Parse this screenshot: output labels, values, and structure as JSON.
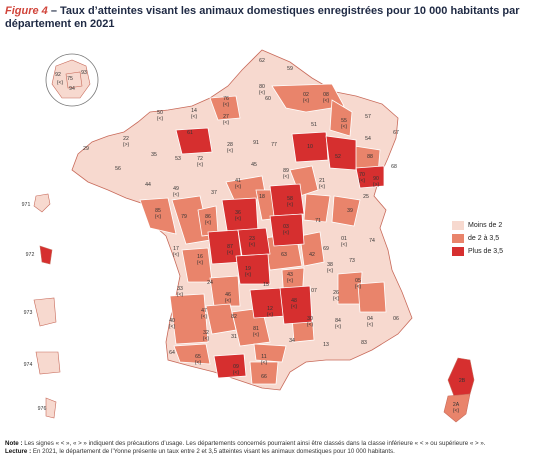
{
  "title": {
    "figure_label": "Figure 4",
    "separator": " – ",
    "text": "Taux d’atteintes visant les animaux domestiques enregistrées pour 10 000 habitants par département en 2021"
  },
  "legend": {
    "items": [
      {
        "label": "Moins de 2",
        "color": "#f7d9cf"
      },
      {
        "label": "de 2 à 3,5",
        "color": "#e9846b"
      },
      {
        "label": "Plus de 3,5",
        "color": "#d62f2f"
      }
    ]
  },
  "colors": {
    "low": "#f7d9cf",
    "mid": "#e9846b",
    "high": "#d62f2f",
    "border": "#ffffff",
    "outline": "#c86a5a",
    "idf_outline": "#777777"
  },
  "map_labels": [
    {
      "id": "62",
      "cls": "low"
    },
    {
      "id": "59",
      "cls": "low"
    },
    {
      "id": "80",
      "cls": "mid"
    },
    {
      "id": "02",
      "cls": "mid"
    },
    {
      "id": "08",
      "cls": "mid"
    },
    {
      "id": "76",
      "cls": "low"
    },
    {
      "id": "60",
      "cls": "mid"
    },
    {
      "id": "50",
      "cls": "low"
    },
    {
      "id": "14",
      "cls": "low"
    },
    {
      "id": "27",
      "cls": "mid"
    },
    {
      "id": "51",
      "cls": "low"
    },
    {
      "id": "55",
      "cls": "mid"
    },
    {
      "id": "57",
      "cls": "low"
    },
    {
      "id": "67",
      "cls": "low"
    },
    {
      "id": "61",
      "cls": "high"
    },
    {
      "id": "28",
      "cls": "low"
    },
    {
      "id": "91",
      "cls": "low"
    },
    {
      "id": "77",
      "cls": "low"
    },
    {
      "id": "10",
      "cls": "high"
    },
    {
      "id": "52",
      "cls": "high"
    },
    {
      "id": "54",
      "cls": "mid"
    },
    {
      "id": "88",
      "cls": "mid"
    },
    {
      "id": "68",
      "cls": "low"
    },
    {
      "id": "29",
      "cls": "low"
    },
    {
      "id": "22",
      "cls": "low"
    },
    {
      "id": "56",
      "cls": "low"
    },
    {
      "id": "35",
      "cls": "low"
    },
    {
      "id": "53",
      "cls": "low"
    },
    {
      "id": "72",
      "cls": "low"
    },
    {
      "id": "45",
      "cls": "low"
    },
    {
      "id": "89",
      "cls": "mid"
    },
    {
      "id": "21",
      "cls": "low"
    },
    {
      "id": "70",
      "cls": "high"
    },
    {
      "id": "90",
      "cls": "low"
    },
    {
      "id": "25",
      "cls": "low"
    },
    {
      "id": "44",
      "cls": "low"
    },
    {
      "id": "49",
      "cls": "low"
    },
    {
      "id": "37",
      "cls": "low"
    },
    {
      "id": "41",
      "cls": "mid"
    },
    {
      "id": "18",
      "cls": "mid"
    },
    {
      "id": "58",
      "cls": "high"
    },
    {
      "id": "71",
      "cls": "mid"
    },
    {
      "id": "39",
      "cls": "mid"
    },
    {
      "id": "85",
      "cls": "mid"
    },
    {
      "id": "79",
      "cls": "mid"
    },
    {
      "id": "86",
      "cls": "mid"
    },
    {
      "id": "36",
      "cls": "high"
    },
    {
      "id": "03",
      "cls": "high"
    },
    {
      "id": "01",
      "cls": "mid"
    },
    {
      "id": "74",
      "cls": "low"
    },
    {
      "id": "17",
      "cls": "low"
    },
    {
      "id": "16",
      "cls": "mid"
    },
    {
      "id": "87",
      "cls": "high"
    },
    {
      "id": "23",
      "cls": "high"
    },
    {
      "id": "63",
      "cls": "mid"
    },
    {
      "id": "42",
      "cls": "mid"
    },
    {
      "id": "69",
      "cls": "low"
    },
    {
      "id": "73",
      "cls": "low"
    },
    {
      "id": "19",
      "cls": "high"
    },
    {
      "id": "43",
      "cls": "mid"
    },
    {
      "id": "38",
      "cls": "low"
    },
    {
      "id": "33",
      "cls": "low"
    },
    {
      "id": "24",
      "cls": "mid"
    },
    {
      "id": "15",
      "cls": "mid"
    },
    {
      "id": "07",
      "cls": "mid"
    },
    {
      "id": "26",
      "cls": "mid"
    },
    {
      "id": "05",
      "cls": "low"
    },
    {
      "id": "46",
      "cls": "mid"
    },
    {
      "id": "47",
      "cls": "mid"
    },
    {
      "id": "12",
      "cls": "high"
    },
    {
      "id": "48",
      "cls": "high"
    },
    {
      "id": "30",
      "cls": "mid"
    },
    {
      "id": "84",
      "cls": "low"
    },
    {
      "id": "04",
      "cls": "mid"
    },
    {
      "id": "06",
      "cls": "low"
    },
    {
      "id": "40",
      "cls": "mid"
    },
    {
      "id": "82",
      "cls": "low"
    },
    {
      "id": "81",
      "cls": "mid"
    },
    {
      "id": "34",
      "cls": "low"
    },
    {
      "id": "13",
      "cls": "low"
    },
    {
      "id": "83",
      "cls": "low"
    },
    {
      "id": "32",
      "cls": "mid"
    },
    {
      "id": "31",
      "cls": "low"
    },
    {
      "id": "11",
      "cls": "mid"
    },
    {
      "id": "64",
      "cls": "low"
    },
    {
      "id": "65",
      "cls": "mid"
    },
    {
      "id": "09",
      "cls": "high"
    },
    {
      "id": "66",
      "cls": "mid"
    },
    {
      "id": "2B",
      "cls": "high"
    },
    {
      "id": "2A",
      "cls": "mid"
    }
  ],
  "suppressed_marks": [
    "(<)",
    "(>)"
  ],
  "overseas": [
    {
      "id": "971",
      "cls": "low"
    },
    {
      "id": "972",
      "cls": "high"
    },
    {
      "id": "973",
      "cls": "low"
    },
    {
      "id": "974",
      "cls": "low"
    },
    {
      "id": "976",
      "cls": "low"
    }
  ],
  "idf": [
    {
      "id": "92",
      "cls": "low"
    },
    {
      "id": "75",
      "cls": "low"
    },
    {
      "id": "93",
      "cls": "low"
    },
    {
      "id": "94",
      "cls": "low"
    },
    {
      "id": "(<)",
      "cls": "low"
    }
  ],
  "notes": {
    "note_label": "Note :",
    "note_text": "Les signes « < », « > » indiquent des précautions d’usage. Les départements concernés pourraient ainsi être classés dans la classe inférieure « < » ou supérieure « > ».",
    "lecture_label": "Lecture :",
    "lecture_text": "En 2021, le département de l’Yonne présente un taux entre 2 et 3,5 atteintes visant les animaux domestiques pour 10 000 habitants."
  }
}
